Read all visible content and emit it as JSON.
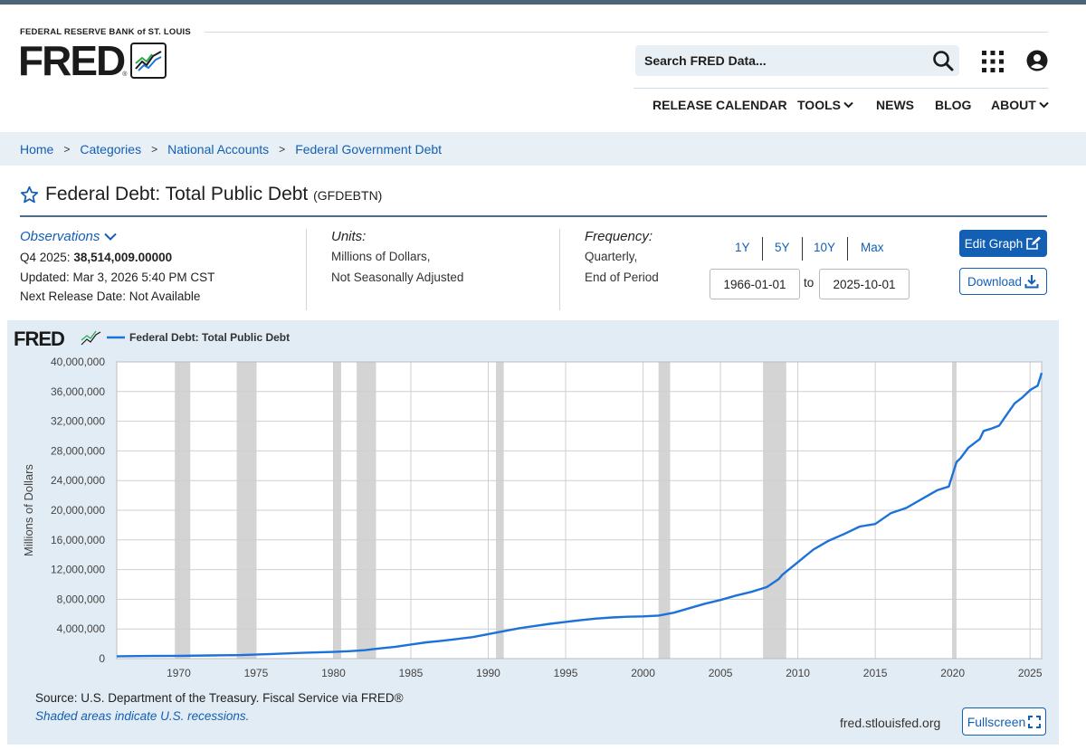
{
  "header": {
    "org_name": "FEDERAL RESERVE BANK of ST. LOUIS",
    "logo_text": "FRED",
    "search_placeholder": "Search FRED Data...",
    "nav": [
      "RELEASE CALENDAR",
      "TOOLS",
      "NEWS",
      "BLOG",
      "ABOUT"
    ]
  },
  "breadcrumb": [
    "Home",
    "Categories",
    "National Accounts",
    "Federal Government Debt"
  ],
  "breadcrumb_separator": ">",
  "series": {
    "title": "Federal Debt: Total Public Debt",
    "id": "(GFDEBTN)"
  },
  "observations": {
    "label": "Observations",
    "latest_period": "Q4 2025:",
    "latest_value": "38,514,009.00000",
    "updated": "Updated: Mar 3, 2026 5:40 PM CST",
    "next_release": "Next Release Date: Not Available"
  },
  "units": {
    "label": "Units:",
    "line1": "Millions of Dollars,",
    "line2": "Not Seasonally Adjusted"
  },
  "frequency": {
    "label": "Frequency:",
    "line1": "Quarterly,",
    "line2": "End of Period"
  },
  "range": {
    "buttons": [
      "1Y",
      "5Y",
      "10Y",
      "Max"
    ],
    "start": "1966-01-01",
    "to_label": "to",
    "end": "2025-10-01"
  },
  "actions": {
    "edit_graph": "Edit Graph",
    "download": "Download"
  },
  "graph": {
    "legend": "Federal Debt: Total Public Debt",
    "source": "Source: U.S. Department of the Treasury. Fiscal Service via FRED®",
    "shaded_note": "Shaded areas indicate U.S. recessions.",
    "site": "fred.stlouisfed.org",
    "fullscreen": "Fullscreen"
  },
  "colors": {
    "line": "#1c72d9",
    "link": "#135fb4",
    "recession": "#d4d4d4",
    "panel_bg": "#e2ecf4"
  },
  "chart_data": {
    "type": "line",
    "ylabel": "Millions of Dollars",
    "ylim": [
      0,
      40000000
    ],
    "yticks": [
      0,
      4000000,
      8000000,
      12000000,
      16000000,
      20000000,
      24000000,
      28000000,
      32000000,
      36000000,
      40000000
    ],
    "ytick_labels": [
      "0",
      "4,000,000",
      "8,000,000",
      "12,000,000",
      "16,000,000",
      "20,000,000",
      "24,000,000",
      "28,000,000",
      "32,000,000",
      "36,000,000",
      "40,000,000"
    ],
    "xlim": [
      1966.0,
      2025.75
    ],
    "xticks": [
      1970,
      1975,
      1980,
      1985,
      1990,
      1995,
      2000,
      2005,
      2010,
      2015,
      2020,
      2025
    ],
    "grid": true,
    "recessions": [
      [
        1969.75,
        1970.75
      ],
      [
        1973.75,
        1975.0
      ],
      [
        1980.0,
        1980.5
      ],
      [
        1981.5,
        1982.75
      ],
      [
        1990.5,
        1991.0
      ],
      [
        2001.0,
        2001.75
      ],
      [
        2007.75,
        2009.25
      ],
      [
        2020.0,
        2020.25
      ]
    ],
    "series": [
      {
        "name": "Federal Debt: Total Public Debt",
        "x": [
          1966.0,
          1968.0,
          1970.0,
          1972.0,
          1974.0,
          1976.0,
          1978.0,
          1980.0,
          1981.0,
          1982.0,
          1983.0,
          1984.0,
          1985.0,
          1986.0,
          1987.0,
          1988.0,
          1989.0,
          1990.0,
          1991.0,
          1992.0,
          1993.0,
          1994.0,
          1995.0,
          1996.0,
          1997.0,
          1998.0,
          1999.0,
          2000.0,
          2001.0,
          2002.0,
          2003.0,
          2004.0,
          2005.0,
          2006.0,
          2007.0,
          2008.0,
          2008.75,
          2009.0,
          2010.0,
          2011.0,
          2012.0,
          2013.0,
          2014.0,
          2015.0,
          2016.0,
          2017.0,
          2018.0,
          2019.0,
          2019.75,
          2020.25,
          2020.5,
          2021.0,
          2021.75,
          2022.0,
          2022.5,
          2023.0,
          2023.5,
          2024.0,
          2024.5,
          2025.0,
          2025.5,
          2025.75
        ],
        "y": [
          320000,
          350000,
          380000,
          430000,
          480000,
          620000,
          780000,
          900000,
          1000000,
          1140000,
          1380000,
          1600000,
          1900000,
          2200000,
          2400000,
          2650000,
          2900000,
          3300000,
          3700000,
          4100000,
          4400000,
          4700000,
          4950000,
          5200000,
          5400000,
          5550000,
          5650000,
          5700000,
          5800000,
          6200000,
          6800000,
          7400000,
          7900000,
          8500000,
          9000000,
          9650000,
          10700000,
          11300000,
          13000000,
          14700000,
          15900000,
          16800000,
          17800000,
          18150000,
          19600000,
          20300000,
          21500000,
          22700000,
          23200000,
          26500000,
          27000000,
          28400000,
          29600000,
          30700000,
          31000000,
          31400000,
          32900000,
          34400000,
          35200000,
          36200000,
          36800000,
          38514009
        ]
      }
    ]
  }
}
